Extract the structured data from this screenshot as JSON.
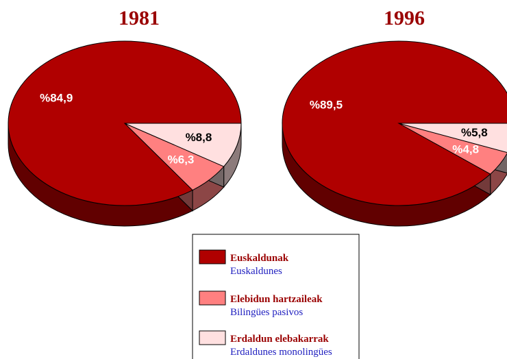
{
  "chart_data": [
    {
      "type": "pie",
      "title": "1981",
      "categories": [
        "Euskaldunak",
        "Elebidun hartzaileak",
        "Erdaldun elebakarrak"
      ],
      "values": [
        84.9,
        6.3,
        8.8
      ],
      "value_labels": [
        "%84,9",
        "%6,3",
        "%8,8"
      ],
      "colors": [
        "#b00000",
        "#ff8080",
        "#ffe0e0"
      ],
      "label_colors": [
        "#ffffff",
        "#ffffff",
        "#000000"
      ]
    },
    {
      "type": "pie",
      "title": "1996",
      "categories": [
        "Euskaldunak",
        "Elebidun hartzaileak",
        "Erdaldun elebakarrak"
      ],
      "values": [
        89.5,
        4.8,
        5.8
      ],
      "value_labels": [
        "%89,5",
        "%4,8",
        "%5,8"
      ],
      "colors": [
        "#b00000",
        "#ff8080",
        "#ffe0e0"
      ],
      "label_colors": [
        "#ffffff",
        "#ffffff",
        "#000000"
      ]
    }
  ],
  "legend": [
    {
      "name": "Euskaldunak",
      "translation": "Euskaldunes",
      "color": "#b00000"
    },
    {
      "name": "Elebidun hartzaileak",
      "translation": "Bilingües pasivos",
      "color": "#ff8080"
    },
    {
      "name": "Erdaldun elebakarrak",
      "translation": "Erdaldunes monolingües",
      "color": "#ffe0e0"
    }
  ]
}
